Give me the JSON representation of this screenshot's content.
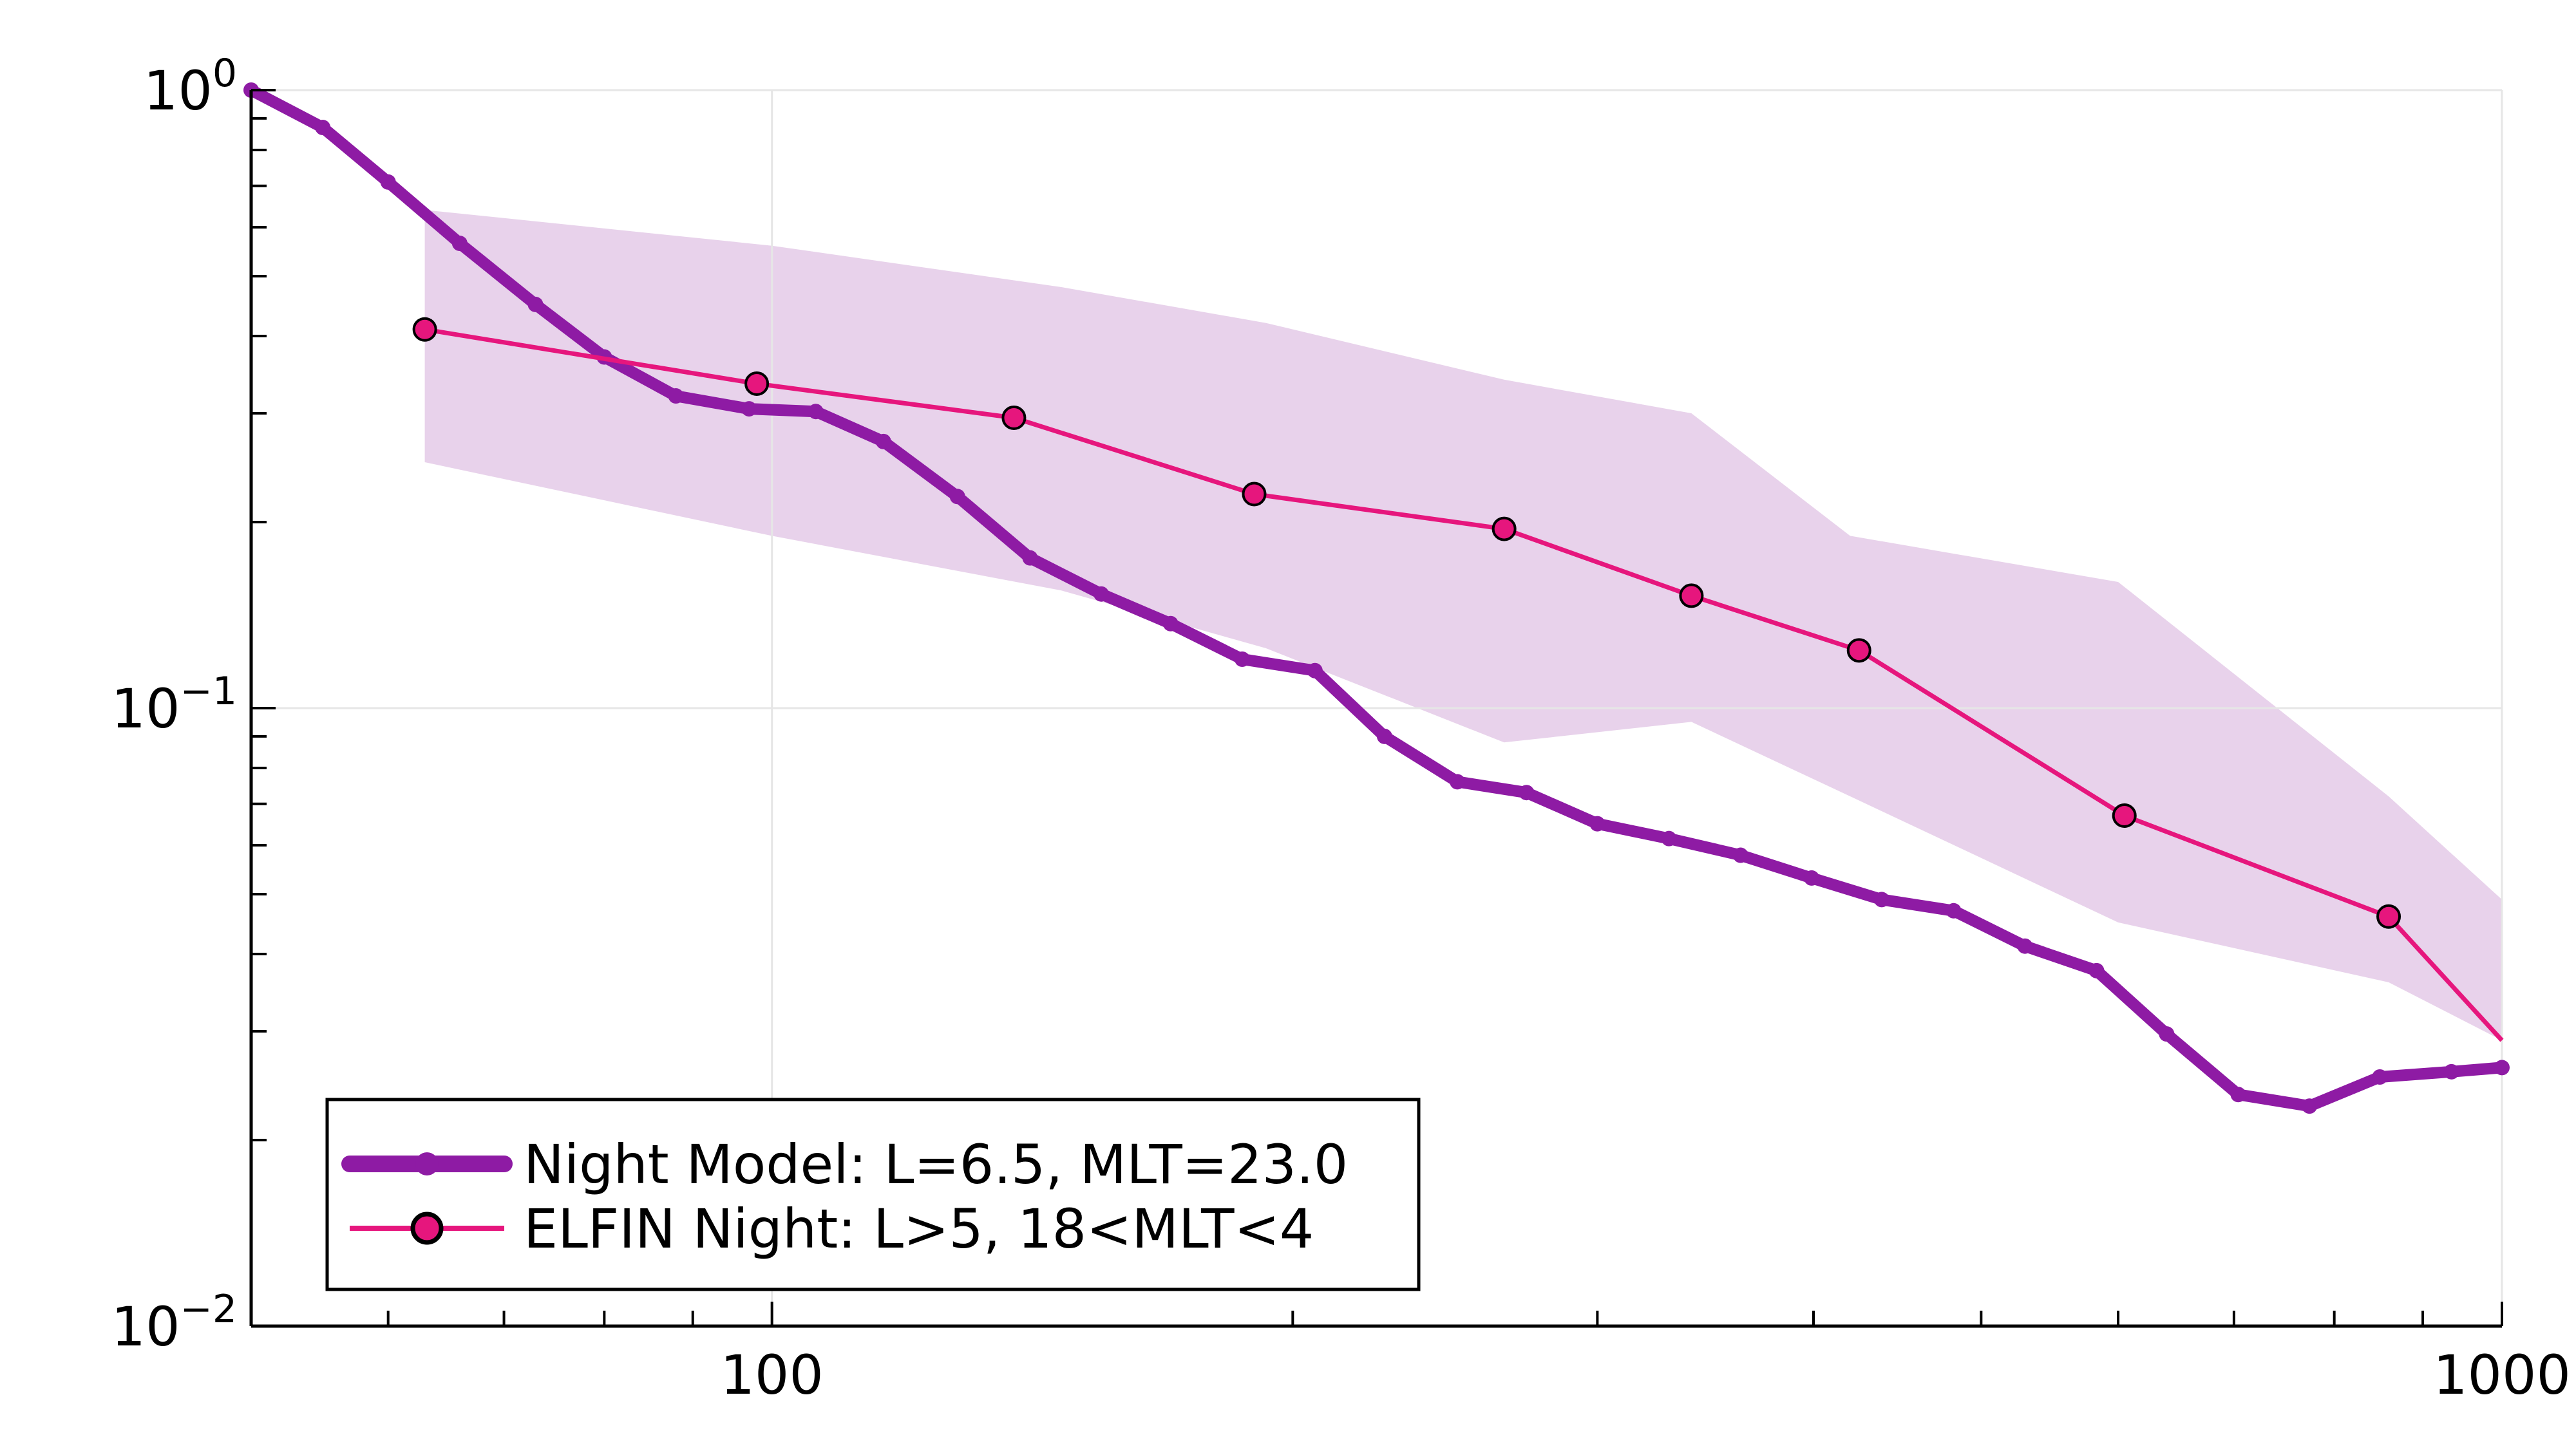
{
  "chart_data": {
    "type": "line",
    "title": "",
    "xlabel": "",
    "ylabel": "",
    "xscale": "log",
    "yscale": "log",
    "xlim": [
      50,
      1000
    ],
    "ylim": [
      0.01,
      1.0
    ],
    "grid": true,
    "legend_position": "bottom-left",
    "x_ticks": [
      {
        "value": 100,
        "label": "100"
      },
      {
        "value": 1000,
        "label": "1000"
      }
    ],
    "y_ticks": [
      {
        "value": 0.01,
        "base": "10",
        "exp": "−2"
      },
      {
        "value": 0.1,
        "base": "10",
        "exp": "−1"
      },
      {
        "value": 1.0,
        "base": "10",
        "exp": "0"
      }
    ],
    "band": {
      "color": "#e8d2eb",
      "x": [
        63,
        100,
        147,
        193,
        265,
        340,
        420,
        600,
        860,
        1000
      ],
      "upper": [
        0.64,
        0.56,
        0.48,
        0.42,
        0.34,
        0.3,
        0.19,
        0.16,
        0.072,
        0.049
      ],
      "lower": [
        0.25,
        0.19,
        0.155,
        0.125,
        0.088,
        0.095,
        0.072,
        0.045,
        0.036,
        0.029
      ]
    },
    "series": [
      {
        "name": "Night Model: L=6.5, MLT=23.0",
        "color": "#8e1ba4",
        "style": "thick-line-small-markers",
        "x": [
          50,
          55,
          60,
          66,
          73,
          80,
          88,
          97,
          106,
          116,
          128,
          141,
          155,
          170,
          187,
          206,
          226,
          249,
          273,
          300,
          330,
          363,
          399,
          438,
          482,
          530,
          583,
          640,
          704,
          774,
          850,
          935,
          1000
        ],
        "y": [
          1.0,
          0.87,
          0.71,
          0.565,
          0.45,
          0.37,
          0.32,
          0.305,
          0.302,
          0.27,
          0.22,
          0.175,
          0.153,
          0.137,
          0.12,
          0.115,
          0.09,
          0.076,
          0.073,
          0.065,
          0.0615,
          0.0578,
          0.0531,
          0.049,
          0.047,
          0.0412,
          0.0376,
          0.0297,
          0.0237,
          0.0227,
          0.0253,
          0.0258,
          0.0262
        ]
      },
      {
        "name": "ELFIN Night: L>5, 18<MLT<4",
        "color": "#e6167d",
        "style": "thin-line-circle-markers",
        "x": [
          63,
          98,
          138,
          190,
          265,
          340,
          425,
          605,
          860,
          1000
        ],
        "y": [
          0.41,
          0.335,
          0.295,
          0.222,
          0.195,
          0.152,
          0.124,
          0.067,
          0.046,
          0.029
        ],
        "marker_indices": [
          0,
          1,
          2,
          3,
          4,
          5,
          6,
          7,
          8
        ]
      }
    ]
  }
}
